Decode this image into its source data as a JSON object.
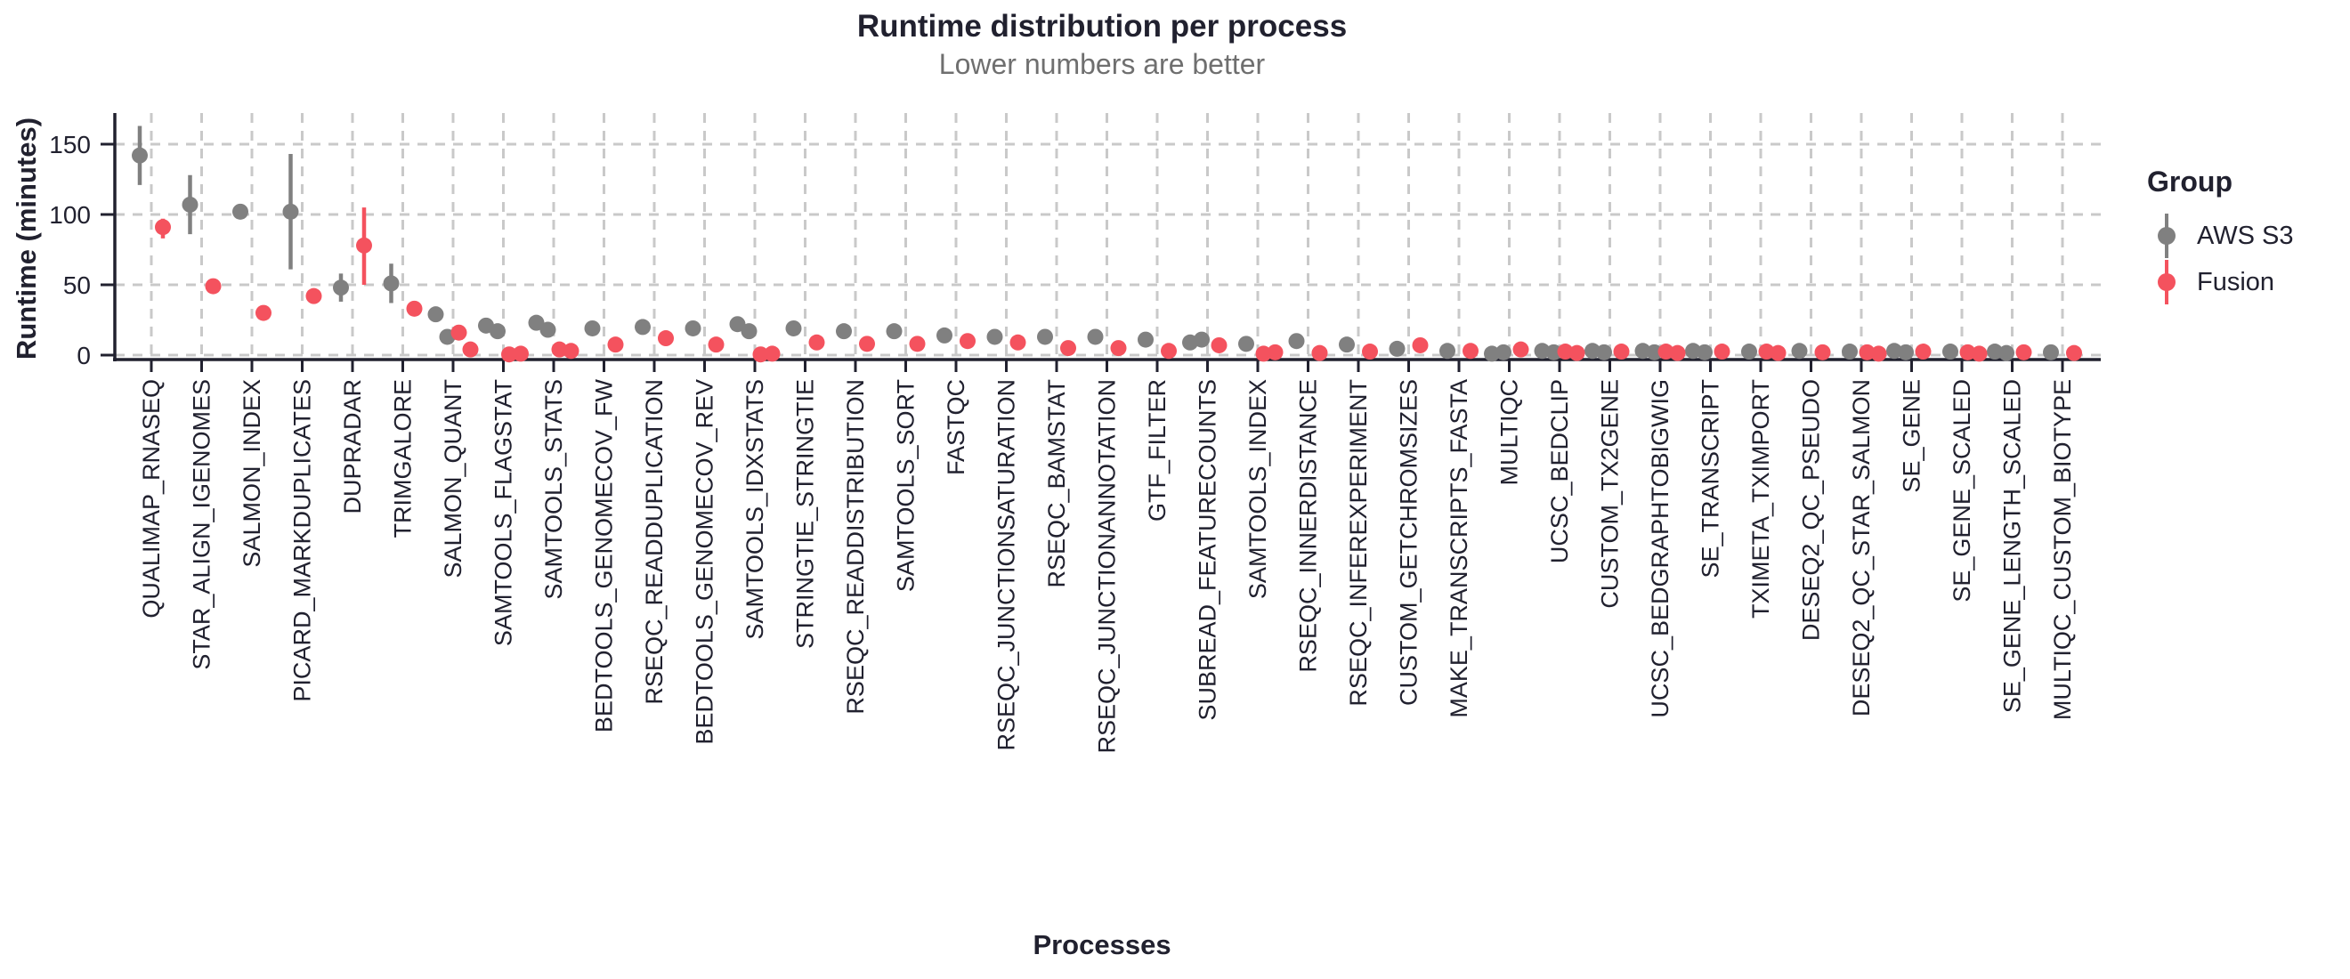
{
  "chart_data": {
    "type": "scatter",
    "title": "Runtime distribution per process",
    "subtitle": "Lower numbers are better",
    "xlabel": "Processes",
    "ylabel": "Runtime (minutes)",
    "ylim": [
      0,
      165
    ],
    "yticks": [
      0,
      50,
      100,
      150
    ],
    "grid": "dashed, vertical line per process and horizontal line per y-tick",
    "legend": {
      "title": "Group",
      "position": "right",
      "entries": [
        {
          "label": "AWS S3",
          "color": "#808080"
        },
        {
          "label": "Fusion",
          "color": "#f4525e"
        }
      ]
    },
    "categories": [
      "QUALIMAP_RNASEQ",
      "STAR_ALIGN_IGENOMES",
      "SALMON_INDEX",
      "PICARD_MARKDUPLICATES",
      "DUPRADAR",
      "TRIMGALORE",
      "SALMON_QUANT",
      "SAMTOOLS_FLAGSTAT",
      "SAMTOOLS_STATS",
      "BEDTOOLS_GENOMECOV_FW",
      "RSEQC_READDUPLICATION",
      "BEDTOOLS_GENOMECOV_REV",
      "SAMTOOLS_IDXSTATS",
      "STRINGTIE_STRINGTIE",
      "RSEQC_READDISTRIBUTION",
      "SAMTOOLS_SORT",
      "FASTQC",
      "RSEQC_JUNCTIONSATURATION",
      "RSEQC_BAMSTAT",
      "RSEQC_JUNCTIONANNOTATION",
      "GTF_FILTER",
      "SUBREAD_FEATURECOUNTS",
      "SAMTOOLS_INDEX",
      "RSEQC_INNERDISTANCE",
      "RSEQC_INFEREXPERIMENT",
      "CUSTOM_GETCHROMSIZES",
      "MAKE_TRANSCRIPTS_FASTA",
      "MULTIQC",
      "UCSC_BEDCLIP",
      "CUSTOM_TX2GENE",
      "UCSC_BEDGRAPHTOBIGWIG",
      "SE_TRANSCRIPT",
      "TXIMETA_TXIMPORT",
      "DESEQ2_QC_PSEUDO",
      "DESEQ2_QC_STAR_SALMON",
      "SE_GENE",
      "SE_GENE_SCALED",
      "SE_GENE_LENGTH_SCALED",
      "MULTIQC_CUSTOM_BIOTYPE"
    ],
    "series": [
      {
        "name": "AWS S3",
        "color": "#808080",
        "points": [
          [
            142
          ],
          [
            107
          ],
          [
            102
          ],
          [
            102
          ],
          [
            48
          ],
          [
            51
          ],
          [
            29,
            13
          ],
          [
            21,
            17
          ],
          [
            23,
            18
          ],
          [
            19
          ],
          [
            20
          ],
          [
            19
          ],
          [
            22,
            17
          ],
          [
            19
          ],
          [
            17
          ],
          [
            17
          ],
          [
            14
          ],
          [
            13
          ],
          [
            13
          ],
          [
            13
          ],
          [
            11
          ],
          [
            9,
            11
          ],
          [
            8
          ],
          [
            10
          ],
          [
            7.5
          ],
          [
            4.5
          ],
          [
            3
          ],
          [
            1,
            2
          ],
          [
            3,
            2
          ],
          [
            3,
            2
          ],
          [
            3,
            2
          ],
          [
            3,
            2
          ],
          [
            2.5
          ],
          [
            3
          ],
          [
            2.5
          ],
          [
            3,
            2
          ],
          [
            2.5
          ],
          [
            2.5,
            1.5
          ],
          [
            2
          ]
        ],
        "ranges": [
          [
            121,
            163
          ],
          [
            86,
            128
          ],
          null,
          [
            61,
            143
          ],
          [
            38,
            58
          ],
          [
            37,
            65
          ],
          null,
          null,
          null,
          null,
          null,
          null,
          null,
          null,
          null,
          [
            12,
            22
          ],
          null,
          null,
          null,
          null,
          null,
          null,
          null,
          null,
          null,
          null,
          null,
          null,
          null,
          null,
          null,
          null,
          null,
          null,
          null,
          null,
          null,
          null,
          null
        ]
      },
      {
        "name": "Fusion",
        "color": "#f4525e",
        "points": [
          [
            91
          ],
          [
            49
          ],
          [
            30
          ],
          [
            42
          ],
          [
            78
          ],
          [
            33
          ],
          [
            16,
            4
          ],
          [
            0.5,
            1
          ],
          [
            4,
            3
          ],
          [
            7.5
          ],
          [
            12
          ],
          [
            7.5
          ],
          [
            0.5,
            1
          ],
          [
            9
          ],
          [
            8
          ],
          [
            8
          ],
          [
            10
          ],
          [
            9
          ],
          [
            5
          ],
          [
            5
          ],
          [
            3
          ],
          [
            7
          ],
          [
            1,
            2
          ],
          [
            1.5
          ],
          [
            2.5
          ],
          [
            7
          ],
          [
            3
          ],
          [
            4
          ],
          [
            2.5,
            1.5
          ],
          [
            2.5
          ],
          [
            2.5,
            1.5
          ],
          [
            2.5
          ],
          [
            2.5,
            1.5
          ],
          [
            2
          ],
          [
            2,
            1
          ],
          [
            2.5
          ],
          [
            2,
            1
          ],
          [
            2
          ],
          [
            1.5
          ]
        ],
        "ranges": [
          [
            83,
            97
          ],
          null,
          null,
          null,
          [
            50,
            105
          ],
          null,
          null,
          null,
          null,
          null,
          null,
          null,
          null,
          null,
          null,
          null,
          null,
          null,
          null,
          null,
          null,
          null,
          null,
          null,
          null,
          null,
          null,
          null,
          null,
          null,
          null,
          null,
          null,
          null,
          null,
          null,
          null,
          null,
          null
        ]
      }
    ]
  }
}
